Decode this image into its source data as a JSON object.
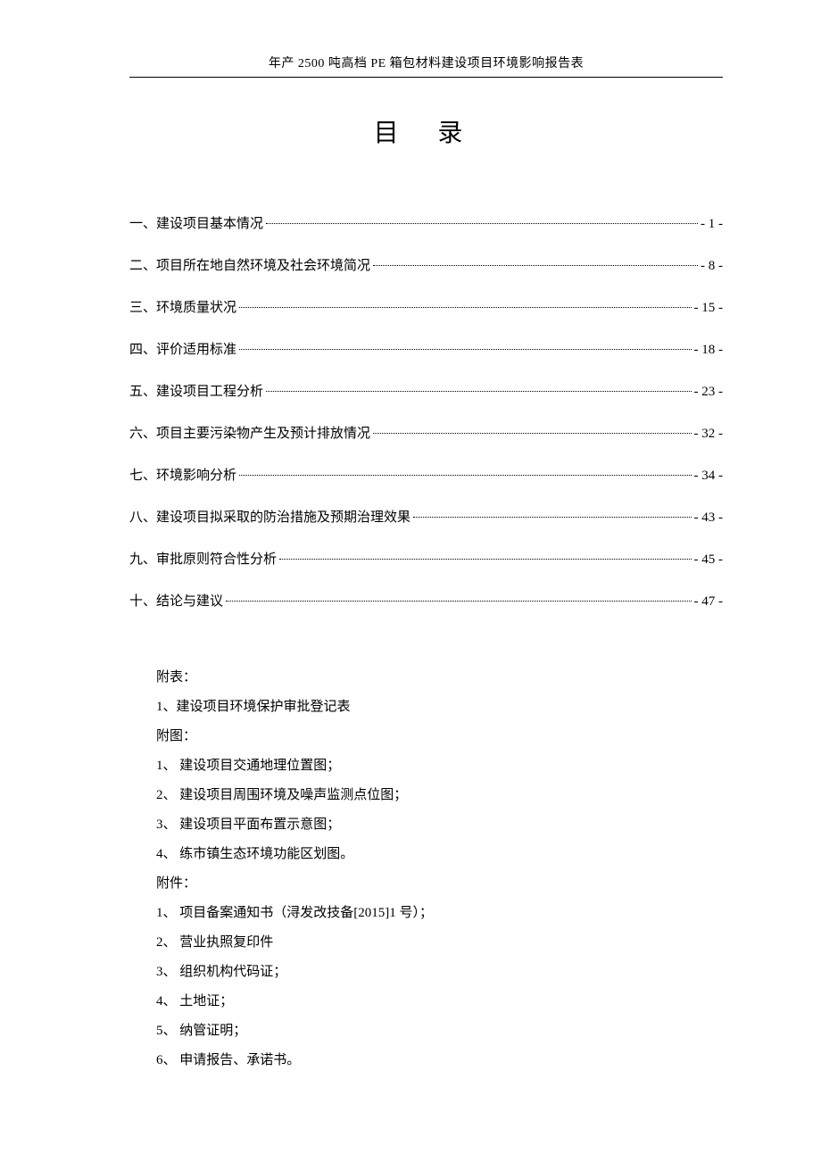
{
  "document": {
    "header_title": "年产 2500 吨高档 PE 箱包材料建设项目环境影响报告表",
    "toc_title": "目 录",
    "toc": [
      {
        "label": "一、建设项目基本情况",
        "page": "- 1 -"
      },
      {
        "label": "二、项目所在地自然环境及社会环境简况",
        "page": "- 8 -"
      },
      {
        "label": "三、环境质量状况",
        "page": "- 15 -"
      },
      {
        "label": "四、评价适用标准",
        "page": "- 18 -"
      },
      {
        "label": "五、建设项目工程分析",
        "page": "- 23 -"
      },
      {
        "label": "六、项目主要污染物产生及预计排放情况",
        "page": "- 32 -"
      },
      {
        "label": "七、环境影响分析",
        "page": "- 34 -"
      },
      {
        "label": "八、建设项目拟采取的防治措施及预期治理效果",
        "page": "- 43 -"
      },
      {
        "label": "九、审批原则符合性分析",
        "page": "- 45 -"
      },
      {
        "label": "十、结论与建议",
        "page": "- 47 -"
      }
    ],
    "appendix": {
      "tables_heading": "附表：",
      "tables": [
        "1、建设项目环境保护审批登记表"
      ],
      "figures_heading": "附图：",
      "figures": [
        "1、 建设项目交通地理位置图；",
        "2、 建设项目周围环境及噪声监测点位图；",
        "3、 建设项目平面布置示意图；",
        "4、 练市镇生态环境功能区划图。"
      ],
      "attachments_heading": "附件：",
      "attachments": [
        "1、 项目备案通知书（浔发改技备[2015]1 号）；",
        "2、 营业执照复印件",
        "3、 组织机构代码证；",
        "4、 土地证；",
        "5、 纳管证明；",
        "6、 申请报告、承诺书。"
      ]
    }
  },
  "style": {
    "page_bg": "#ffffff",
    "text_color": "#000000",
    "rule_color": "#000000",
    "body_fontsize": 15,
    "toc_title_fontsize": 28,
    "header_fontsize": 14,
    "line_height": 2.2
  }
}
